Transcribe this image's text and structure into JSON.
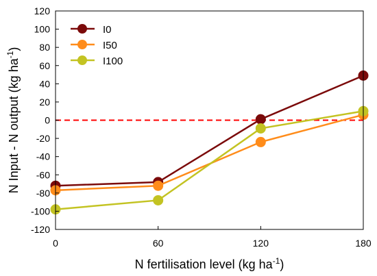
{
  "chart_data": {
    "type": "line",
    "x": [
      0,
      60,
      120,
      180
    ],
    "xticks": [
      "0",
      "60",
      "120",
      "180"
    ],
    "xlim": [
      0,
      180
    ],
    "ylim": [
      -120,
      120
    ],
    "yticks": [
      -120,
      -100,
      -80,
      -60,
      -40,
      -20,
      0,
      20,
      40,
      60,
      80,
      100,
      120
    ],
    "xlabel": {
      "main": "N fertilisation level (kg ha",
      "sup": "-1",
      "close": ")"
    },
    "ylabel": {
      "main": "N Input - N output (kg ha",
      "sup": "-1",
      "close": ")"
    },
    "reference_line": {
      "y": 0,
      "color": "#ff0000",
      "style": "dashed"
    },
    "legend_position": "top-left",
    "grid": false,
    "series": [
      {
        "name": "I0",
        "color": "#7b0a0a",
        "values": [
          -72,
          -68,
          1,
          49
        ]
      },
      {
        "name": "I50",
        "color": "#ff8c1a",
        "values": [
          -77,
          -72,
          -24,
          6
        ]
      },
      {
        "name": "I100",
        "color": "#c3c322",
        "values": [
          -98,
          -88,
          -9,
          10
        ]
      }
    ]
  }
}
